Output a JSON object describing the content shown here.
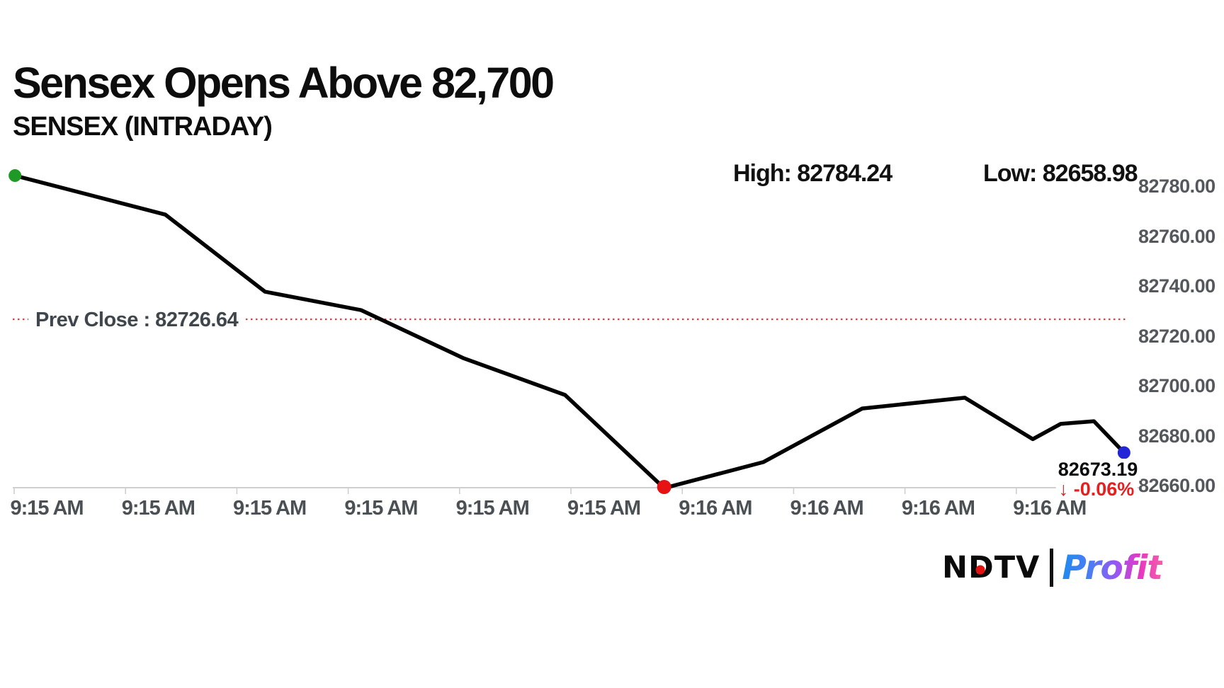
{
  "header": {
    "title": "Sensex Opens Above 82,700",
    "subtitle": "SENSEX (INTRADAY)"
  },
  "stats": {
    "high_label": "High: 82784.24",
    "low_label": "Low: 82658.98"
  },
  "prev_close": {
    "label": "Prev Close : 82726.64",
    "value": 82726.64
  },
  "last_point": {
    "value_label": "82673.19",
    "change_label": "↓ -0.06%"
  },
  "branding": {
    "letter_n": "N",
    "letter_d": "D",
    "letters_tv": "TV",
    "product": "Profit"
  },
  "chart_data": {
    "type": "line",
    "title": "SENSEX (INTRADAY)",
    "xlabel": "",
    "ylabel": "",
    "ylim": [
      82660,
      82790
    ],
    "grid": false,
    "legend_position": "none",
    "high": 82784.24,
    "low": 82658.98,
    "prev_close": 82726.64,
    "last": 82673.19,
    "change_pct": -0.06,
    "line_color": "#000000",
    "prev_close_line_color": "#cc4848",
    "axis_color": "#cfcfcf",
    "marker_colors": {
      "start": "#1f9a27",
      "low": "#e51313",
      "end": "#2525d8"
    },
    "y_tick_labels": [
      "82780.00",
      "82760.00",
      "82740.00",
      "82720.00",
      "82700.00",
      "82680.00",
      "82660.00"
    ],
    "y_tick_values": [
      82780,
      82760,
      82740,
      82720,
      82700,
      82680,
      82660
    ],
    "x_tick_labels": [
      "9:15 AM",
      "9:15 AM",
      "9:15 AM",
      "9:15 AM",
      "9:15 AM",
      "9:15 AM",
      "9:16 AM",
      "9:16 AM",
      "9:16 AM",
      "9:16 AM"
    ],
    "series": [
      {
        "name": "SENSEX",
        "points": [
          {
            "x": 0.002,
            "v": 82784.24,
            "marker": "start"
          },
          {
            "x": 0.137,
            "v": 82768.6
          },
          {
            "x": 0.2265,
            "v": 82737.7
          },
          {
            "x": 0.313,
            "v": 82730.3
          },
          {
            "x": 0.405,
            "v": 82711.0
          },
          {
            "x": 0.496,
            "v": 82696.3
          },
          {
            "x": 0.585,
            "v": 82658.98,
            "marker": "low"
          },
          {
            "x": 0.674,
            "v": 82669.4
          },
          {
            "x": 0.763,
            "v": 82690.9
          },
          {
            "x": 0.855,
            "v": 82695.2
          },
          {
            "x": 0.916,
            "v": 82678.6
          },
          {
            "x": 0.941,
            "v": 82684.7
          },
          {
            "x": 0.971,
            "v": 82685.8
          },
          {
            "x": 0.998,
            "v": 82673.19,
            "marker": "end"
          }
        ]
      }
    ]
  }
}
